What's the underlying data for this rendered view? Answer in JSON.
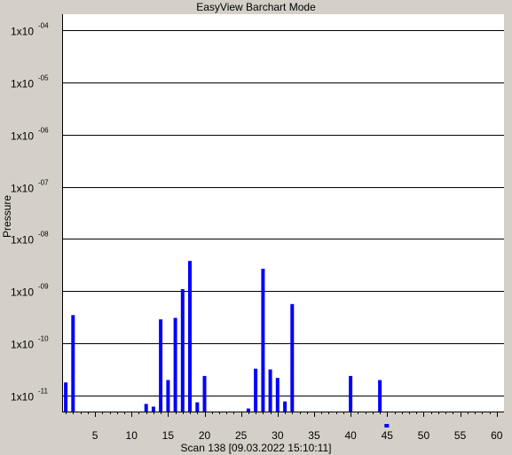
{
  "window": {
    "title": "EasyView Barchart Mode"
  },
  "chart_data": {
    "type": "bar",
    "title": "EasyView Barchart Mode",
    "ylabel": "Pressure",
    "xlabel": "Scan 138 [09.03.2022 15:10:11]",
    "yscale": "log",
    "ylim": [
      5e-12,
      0.0002
    ],
    "xlim": [
      0.5,
      61
    ],
    "y_ticks": [
      {
        "value": 0.0001,
        "base": "1x10",
        "exp": "-04"
      },
      {
        "value": 1e-05,
        "base": "1x10",
        "exp": "-05"
      },
      {
        "value": 1e-06,
        "base": "1x10",
        "exp": "-06"
      },
      {
        "value": 1e-07,
        "base": "1x10",
        "exp": "-07"
      },
      {
        "value": 1e-08,
        "base": "1x10",
        "exp": "-08"
      },
      {
        "value": 1e-09,
        "base": "1x10",
        "exp": "-09"
      },
      {
        "value": 1e-10,
        "base": "1x10",
        "exp": "-10"
      },
      {
        "value": 1e-11,
        "base": "1x10",
        "exp": "-11"
      }
    ],
    "x_tick_labels": [
      5,
      10,
      15,
      20,
      25,
      30,
      35,
      40,
      45,
      50,
      55,
      60
    ],
    "grid": true,
    "bar_color": "#0000ff",
    "marker_mass": 45,
    "bars": [
      {
        "x": 1,
        "y": 1.8e-11
      },
      {
        "x": 2,
        "y": 3.5e-10
      },
      {
        "x": 12,
        "y": 7e-12
      },
      {
        "x": 13,
        "y": 6.2e-12
      },
      {
        "x": 14,
        "y": 2.9e-10
      },
      {
        "x": 15,
        "y": 2e-11
      },
      {
        "x": 16,
        "y": 3.1e-10
      },
      {
        "x": 17,
        "y": 1.1e-09
      },
      {
        "x": 18,
        "y": 3.8e-09
      },
      {
        "x": 19,
        "y": 7.5e-12
      },
      {
        "x": 20,
        "y": 2.4e-11
      },
      {
        "x": 26,
        "y": 5.7e-12
      },
      {
        "x": 27,
        "y": 3.3e-11
      },
      {
        "x": 28,
        "y": 2.7e-09
      },
      {
        "x": 29,
        "y": 3.2e-11
      },
      {
        "x": 30,
        "y": 2.2e-11
      },
      {
        "x": 31,
        "y": 7.8e-12
      },
      {
        "x": 32,
        "y": 5.7e-10
      },
      {
        "x": 40,
        "y": 2.4e-11
      },
      {
        "x": 44,
        "y": 2e-11
      }
    ]
  }
}
